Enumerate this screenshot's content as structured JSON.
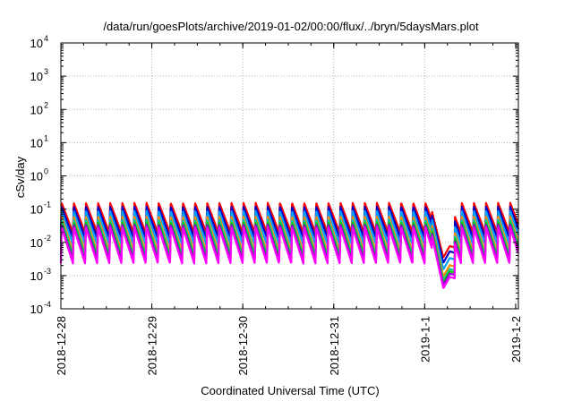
{
  "chart_data": {
    "type": "line",
    "title": "/data/run/goesPlots/archive/2019-01-02/00:00/flux/../bryn/5daysMars.plot",
    "xlabel": "Coordinated Universal Time (UTC)",
    "ylabel": "cSv/day",
    "y_scale": "log",
    "ylim": [
      0.0001,
      10000
    ],
    "y_ticks": [
      {
        "base": "10",
        "exp": "-4",
        "value": 0.0001
      },
      {
        "base": "10",
        "exp": "-3",
        "value": 0.001
      },
      {
        "base": "10",
        "exp": "-2",
        "value": 0.01
      },
      {
        "base": "10",
        "exp": "-1",
        "value": 0.1
      },
      {
        "base": "10",
        "exp": "0",
        "value": 1
      },
      {
        "base": "10",
        "exp": "1",
        "value": 10
      },
      {
        "base": "10",
        "exp": "2",
        "value": 100
      },
      {
        "base": "10",
        "exp": "3",
        "value": 1000
      },
      {
        "base": "10",
        "exp": "4",
        "value": 10000
      }
    ],
    "x_ticks": [
      {
        "label": "2018-12-28",
        "day": 0
      },
      {
        "label": "2018-12-29",
        "day": 1
      },
      {
        "label": "2018-12-30",
        "day": 2
      },
      {
        "label": "2018-12-31",
        "day": 3
      },
      {
        "label": "2019-1-1",
        "day": 4
      },
      {
        "label": "2019-1-2",
        "day": 5
      }
    ],
    "xlim_days": [
      0,
      5.03
    ],
    "grid": true,
    "sawtooth": {
      "period_days": 0.1333,
      "anomaly_window_days": [
        4.08,
        4.33
      ],
      "anomaly_trough_factor": 0.18
    },
    "series": [
      {
        "color": "#ff0000",
        "peak": 0.155,
        "trough": 0.0195
      },
      {
        "color": "#0000c8",
        "peak": 0.118,
        "trough": 0.0135
      },
      {
        "color": "#00a0ff",
        "peak": 0.088,
        "trough": 0.0085
      },
      {
        "color": "#ff8c00",
        "peak": 0.06,
        "trough": 0.0052
      },
      {
        "color": "#00c8a0",
        "peak": 0.048,
        "trough": 0.004
      },
      {
        "color": "#00d000",
        "peak": 0.04,
        "trough": 0.0034
      },
      {
        "color": "#9400d3",
        "peak": 0.034,
        "trough": 0.0029
      },
      {
        "color": "#ff00ff",
        "peak": 0.028,
        "trough": 0.0023
      }
    ]
  }
}
